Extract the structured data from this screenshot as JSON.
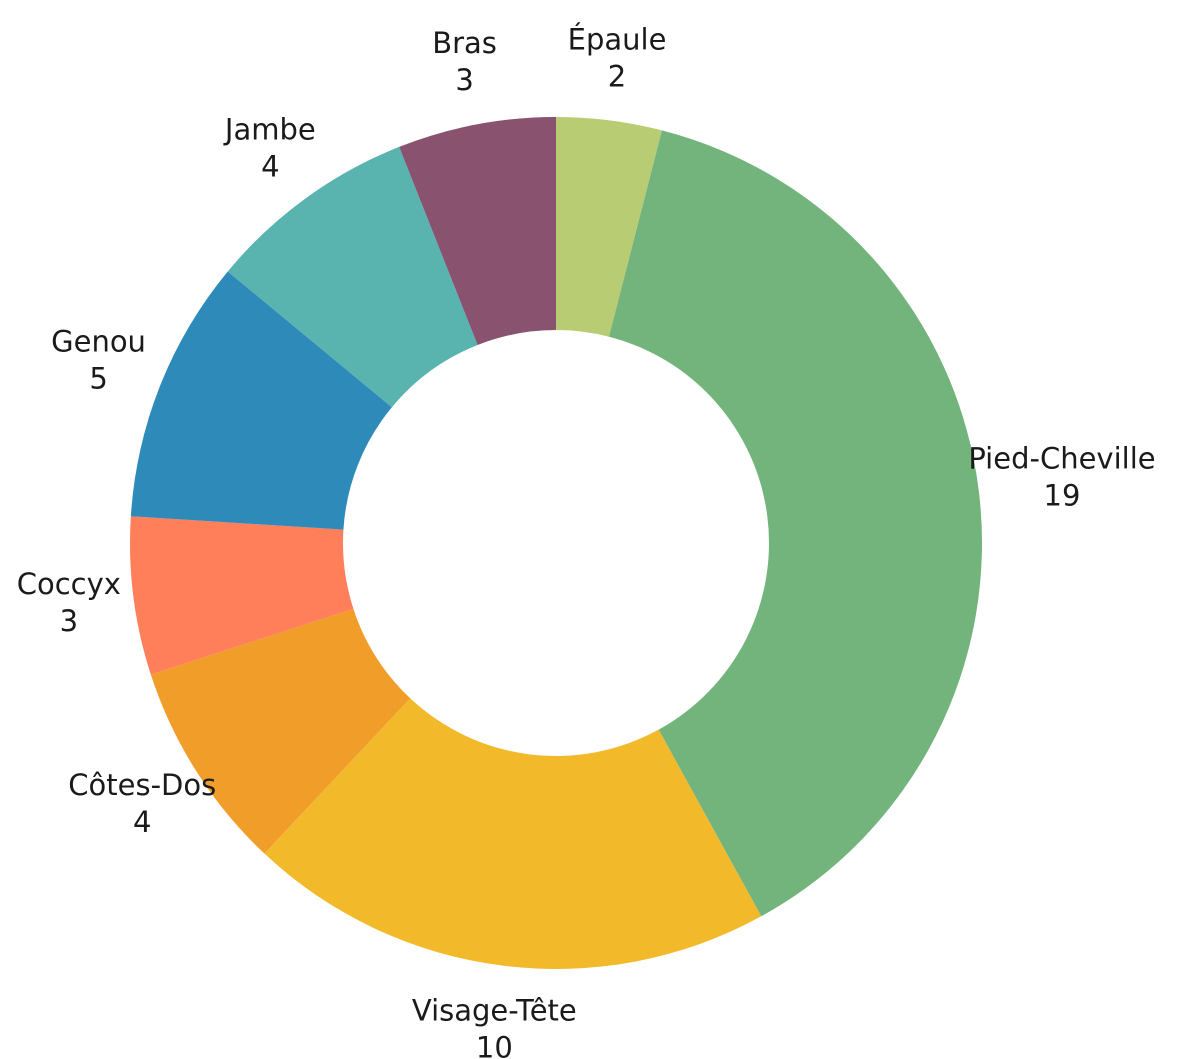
{
  "chart_data": {
    "type": "pie",
    "donut": true,
    "start": "top",
    "direction": "clockwise",
    "legend": "none",
    "slices": [
      {
        "label": "Épaule",
        "value": 2,
        "color": "#b8cd73"
      },
      {
        "label": "Pied-Cheville",
        "value": 19,
        "color": "#73b47d"
      },
      {
        "label": "Visage-Tête",
        "value": 10,
        "color": "#f2b92a"
      },
      {
        "label": "Côtes-Dos",
        "value": 4,
        "color": "#f19d2a"
      },
      {
        "label": "Coccyx",
        "value": 3,
        "color": "#ff7f5b"
      },
      {
        "label": "Genou",
        "value": 5,
        "color": "#2e8bb9"
      },
      {
        "label": "Jambe",
        "value": 4,
        "color": "#59b3ae"
      },
      {
        "label": "Bras",
        "value": 3,
        "color": "#89526f"
      }
    ]
  }
}
